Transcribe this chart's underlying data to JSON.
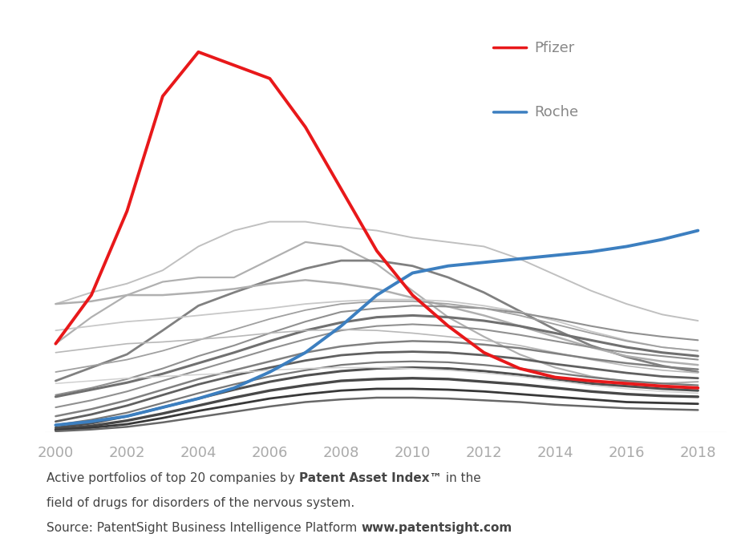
{
  "years": [
    2000,
    2001,
    2002,
    2003,
    2004,
    2005,
    2006,
    2007,
    2008,
    2009,
    2010,
    2011,
    2012,
    2013,
    2014,
    2015,
    2016,
    2017,
    2018
  ],
  "pfizer": [
    100,
    155,
    250,
    380,
    430,
    415,
    400,
    345,
    275,
    205,
    155,
    120,
    90,
    72,
    62,
    58,
    55,
    52,
    50
  ],
  "roche": [
    8,
    12,
    18,
    28,
    38,
    50,
    68,
    90,
    120,
    155,
    180,
    188,
    192,
    196,
    200,
    204,
    210,
    218,
    228
  ],
  "gray_lines": [
    {
      "color": "#b0b0b0",
      "lw": 1.6,
      "data": [
        100,
        130,
        155,
        170,
        175,
        175,
        195,
        215,
        210,
        190,
        160,
        130,
        108,
        88,
        73,
        63,
        57,
        55,
        57
      ]
    },
    {
      "color": "#c0c0c0",
      "lw": 1.4,
      "data": [
        145,
        158,
        168,
        183,
        210,
        228,
        238,
        238,
        232,
        228,
        220,
        215,
        210,
        196,
        178,
        160,
        145,
        133,
        126
      ]
    },
    {
      "color": "#808080",
      "lw": 2.0,
      "data": [
        58,
        73,
        88,
        115,
        143,
        158,
        172,
        185,
        194,
        194,
        188,
        175,
        158,
        137,
        116,
        98,
        85,
        75,
        68
      ]
    },
    {
      "color": "#b0b0b0",
      "lw": 1.8,
      "data": [
        145,
        148,
        155,
        155,
        158,
        162,
        168,
        172,
        168,
        162,
        152,
        142,
        132,
        120,
        108,
        96,
        86,
        80,
        76
      ]
    },
    {
      "color": "#c8c8c8",
      "lw": 1.3,
      "data": [
        115,
        120,
        125,
        128,
        132,
        136,
        140,
        145,
        148,
        150,
        150,
        148,
        143,
        136,
        126,
        114,
        104,
        96,
        92
      ]
    },
    {
      "color": "#909090",
      "lw": 1.5,
      "data": [
        42,
        50,
        60,
        72,
        86,
        98,
        112,
        125,
        136,
        140,
        143,
        142,
        140,
        135,
        128,
        120,
        113,
        108,
        104
      ]
    },
    {
      "color": "#a0a0a0",
      "lw": 1.3,
      "data": [
        68,
        75,
        82,
        92,
        104,
        116,
        128,
        138,
        145,
        148,
        148,
        145,
        140,
        132,
        122,
        112,
        103,
        96,
        92
      ]
    },
    {
      "color": "#707070",
      "lw": 2.2,
      "data": [
        40,
        48,
        56,
        66,
        78,
        90,
        103,
        115,
        124,
        130,
        132,
        130,
        126,
        120,
        112,
        104,
        96,
        90,
        86
      ]
    },
    {
      "color": "#909090",
      "lw": 1.5,
      "data": [
        28,
        36,
        46,
        58,
        70,
        82,
        94,
        105,
        115,
        120,
        122,
        120,
        116,
        110,
        103,
        96,
        90,
        86,
        82
      ]
    },
    {
      "color": "#b8b8b8",
      "lw": 1.2,
      "data": [
        90,
        95,
        100,
        102,
        105,
        108,
        112,
        115,
        116,
        115,
        112,
        108,
        104,
        98,
        90,
        82,
        75,
        70,
        67
      ]
    },
    {
      "color": "#808080",
      "lw": 1.8,
      "data": [
        18,
        26,
        36,
        48,
        60,
        70,
        80,
        90,
        97,
        101,
        103,
        102,
        99,
        95,
        89,
        83,
        78,
        74,
        71
      ]
    },
    {
      "color": "#606060",
      "lw": 2.0,
      "data": [
        12,
        20,
        30,
        42,
        54,
        64,
        73,
        81,
        87,
        90,
        91,
        90,
        87,
        83,
        77,
        72,
        67,
        63,
        61
      ]
    },
    {
      "color": "#787878",
      "lw": 1.6,
      "data": [
        8,
        14,
        22,
        33,
        44,
        54,
        63,
        70,
        76,
        79,
        80,
        79,
        76,
        72,
        67,
        62,
        58,
        55,
        53
      ]
    },
    {
      "color": "#505050",
      "lw": 2.2,
      "data": [
        5,
        10,
        18,
        28,
        38,
        48,
        57,
        64,
        69,
        72,
        73,
        72,
        69,
        65,
        60,
        55,
        52,
        49,
        47
      ]
    },
    {
      "color": "#484848",
      "lw": 2.4,
      "data": [
        3,
        7,
        13,
        21,
        30,
        39,
        47,
        53,
        58,
        60,
        61,
        60,
        57,
        54,
        50,
        46,
        43,
        41,
        40
      ]
    },
    {
      "color": "#383838",
      "lw": 2.0,
      "data": [
        2,
        5,
        9,
        16,
        24,
        31,
        38,
        43,
        47,
        49,
        49,
        48,
        46,
        43,
        40,
        37,
        34,
        33,
        32
      ]
    },
    {
      "color": "#d0d0d0",
      "lw": 1.1,
      "data": [
        55,
        58,
        61,
        63,
        65,
        67,
        70,
        72,
        73,
        73,
        72,
        70,
        67,
        63,
        58,
        53,
        49,
        46,
        44
      ]
    },
    {
      "color": "#686868",
      "lw": 1.8,
      "data": [
        1,
        3,
        6,
        11,
        17,
        23,
        29,
        34,
        37,
        39,
        39,
        38,
        36,
        34,
        31,
        29,
        27,
        26,
        25
      ]
    }
  ],
  "pfizer_color": "#e8181a",
  "roche_color": "#3c7fc0",
  "background_color": "#ffffff",
  "axis_color": "#cccccc",
  "tick_label_color": "#aaaaaa",
  "subtitle_text1": "Active portfolios of top 20 companies by ",
  "subtitle_bold1": "Patent Asset Index™",
  "subtitle_text2": " in the",
  "subtitle_line2": "field of drugs for disorders of the nervous system.",
  "subtitle_line3_normal": "Source: PatentSight Business Intelligence Platform ",
  "subtitle_line3_bold": "www.patentsight.com",
  "pfizer_label": "Pfizer",
  "roche_label": "Roche",
  "xlim": [
    1999.7,
    2018.8
  ],
  "ylim": [
    0,
    470
  ],
  "xticks": [
    2000,
    2002,
    2004,
    2006,
    2008,
    2010,
    2012,
    2014,
    2016,
    2018
  ]
}
